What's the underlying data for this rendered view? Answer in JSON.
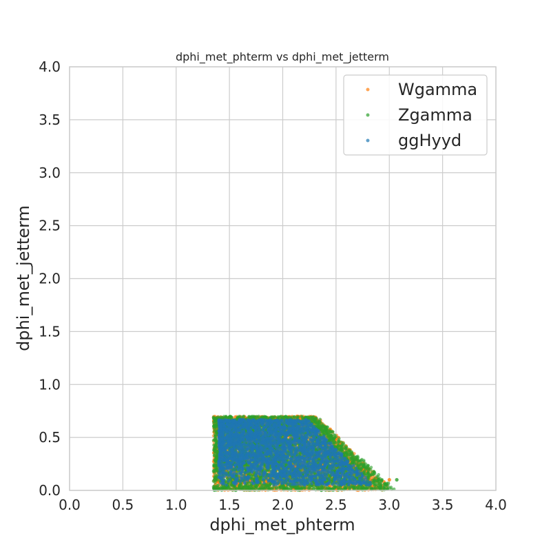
{
  "chart_data": {
    "type": "scatter",
    "title": "dphi_met_phterm vs dphi_met_jetterm",
    "xlabel": "dphi_met_phterm",
    "ylabel": "dphi_met_jetterm",
    "xlim": [
      0.0,
      4.0
    ],
    "ylim": [
      0.0,
      4.0
    ],
    "xticks": [
      "0.0",
      "0.5",
      "1.0",
      "1.5",
      "2.0",
      "2.5",
      "3.0",
      "3.5",
      "4.0"
    ],
    "yticks": [
      "0.0",
      "0.5",
      "1.0",
      "1.5",
      "2.0",
      "2.5",
      "3.0",
      "3.5",
      "4.0"
    ],
    "grid": true,
    "legend_position": "top-right",
    "series": [
      {
        "name": "Wgamma",
        "color": "#ff7f0e",
        "region": {
          "x_min": 1.35,
          "x_max": 2.98,
          "y_min": 0.0,
          "y_max": 0.7,
          "x_edge_at_y_max": 2.3,
          "x_edge_at_y_min": 3.0
        },
        "points": [
          [
            1.36,
            0.69
          ],
          [
            2.3,
            0.69
          ],
          [
            2.55,
            0.45
          ],
          [
            2.8,
            0.2
          ],
          [
            2.95,
            0.08
          ],
          [
            3.0,
            0.1
          ],
          [
            1.36,
            0.02
          ],
          [
            1.8,
            0.68
          ],
          [
            2.0,
            0.69
          ],
          [
            2.65,
            0.35
          ]
        ]
      },
      {
        "name": "Zgamma",
        "color": "#2ca02c",
        "region": {
          "x_min": 1.35,
          "x_max": 3.08,
          "y_min": 0.0,
          "y_max": 0.7,
          "x_edge_at_y_max": 2.3,
          "x_edge_at_y_min": 3.05
        },
        "points": [
          [
            1.36,
            0.1
          ],
          [
            1.4,
            0.3
          ],
          [
            1.5,
            0.15
          ],
          [
            1.6,
            0.05
          ],
          [
            2.1,
            0.05
          ],
          [
            2.5,
            0.4
          ],
          [
            2.9,
            0.1
          ],
          [
            3.07,
            0.1
          ],
          [
            1.38,
            0.6
          ],
          [
            1.7,
            0.69
          ]
        ]
      },
      {
        "name": "ggHyyd",
        "color": "#1f77b4",
        "region": {
          "x_min": 1.35,
          "x_max": 2.95,
          "y_min": 0.0,
          "y_max": 0.7,
          "x_edge_at_y_max": 2.25,
          "x_edge_at_y_min": 2.95
        },
        "points": [
          [
            1.5,
            0.45
          ],
          [
            1.8,
            0.4
          ],
          [
            2.0,
            0.35
          ],
          [
            2.2,
            0.3
          ],
          [
            2.4,
            0.25
          ],
          [
            1.7,
            0.55
          ],
          [
            2.6,
            0.15
          ],
          [
            1.6,
            0.3
          ],
          [
            1.9,
            0.5
          ],
          [
            2.3,
            0.2
          ]
        ]
      }
    ]
  }
}
